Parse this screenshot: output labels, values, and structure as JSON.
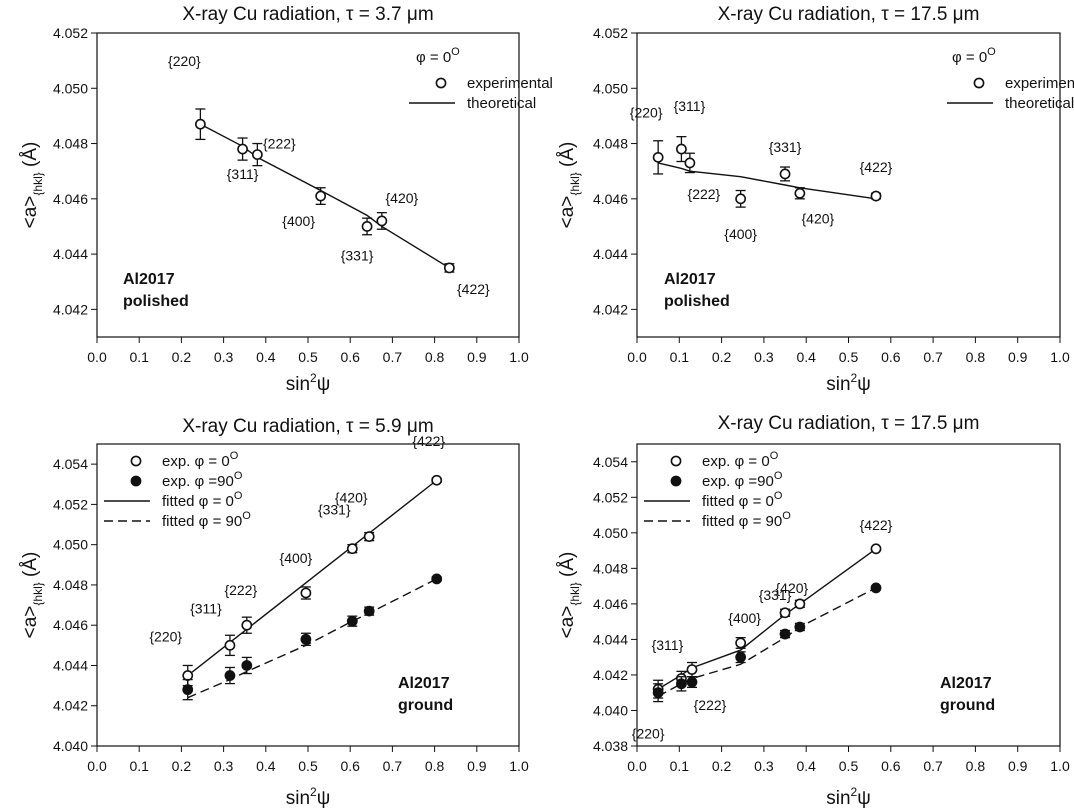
{
  "chart_data": [
    {
      "type": "scatter",
      "title": "X-ray Cu radiation, τ = 3.7 μm",
      "xlabel": "sin²ψ",
      "ylabel": "<a>{hkl} (Å)",
      "xlim": [
        0.0,
        1.0
      ],
      "ylim": [
        4.041,
        4.052
      ],
      "xticks": [
        "0.0",
        "0.1",
        "0.2",
        "0.3",
        "0.4",
        "0.5",
        "0.6",
        "0.7",
        "0.8",
        "0.9",
        "1.0"
      ],
      "yticks": [
        "4.042",
        "4.044",
        "4.046",
        "4.048",
        "4.050",
        "4.052"
      ],
      "phi_note": "φ = 0°",
      "sample_label": [
        "Al2017",
        "polished"
      ],
      "legend": [
        "experimental",
        "theoretical"
      ],
      "series": [
        {
          "name": "experimental",
          "style": "open",
          "x": [
            0.245,
            0.345,
            0.38,
            0.53,
            0.64,
            0.675,
            0.835
          ],
          "y": [
            4.0487,
            4.0478,
            4.0476,
            4.0461,
            4.045,
            4.0452,
            4.0435
          ],
          "err": [
            0.00055,
            0.0004,
            0.0004,
            0.0003,
            0.0003,
            0.0003,
            0.00015
          ],
          "labels": [
            "{220}",
            "{311}",
            "{222}",
            "{400}",
            "{331}",
            "{420}",
            "{422}"
          ]
        },
        {
          "name": "theoretical",
          "style": "solid",
          "x": [
            0.245,
            0.345,
            0.38,
            0.53,
            0.64,
            0.675,
            0.835
          ],
          "y": [
            4.0487,
            4.0479,
            4.0475,
            4.0463,
            4.0454,
            4.045,
            4.0435
          ]
        }
      ]
    },
    {
      "type": "scatter",
      "title": "X-ray Cu radiation, τ = 17.5 μm",
      "xlabel": "sin²ψ",
      "ylabel": "<a>{hkl} (Å)",
      "xlim": [
        0.0,
        1.0
      ],
      "ylim": [
        4.041,
        4.052
      ],
      "xticks": [
        "0.0",
        "0.1",
        "0.2",
        "0.3",
        "0.4",
        "0.5",
        "0.6",
        "0.7",
        "0.8",
        "0.9",
        "1.0"
      ],
      "yticks": [
        "4.042",
        "4.044",
        "4.046",
        "4.048",
        "4.050",
        "4.052"
      ],
      "phi_note": "φ = 0°",
      "sample_label": [
        "Al2017",
        "polished"
      ],
      "legend": [
        "experimental",
        "theoretical"
      ],
      "series": [
        {
          "name": "experimental",
          "style": "open",
          "x": [
            0.05,
            0.105,
            0.125,
            0.245,
            0.35,
            0.385,
            0.565
          ],
          "y": [
            4.0475,
            4.0478,
            4.0473,
            4.046,
            4.0469,
            4.0462,
            4.0461
          ],
          "err": [
            0.0006,
            0.00045,
            0.00035,
            0.0003,
            0.00025,
            0.0002,
            0.0001
          ],
          "labels": [
            "{220}",
            "{311}",
            "{222}",
            "{400}",
            "{331}",
            "{420}",
            "{422}"
          ]
        },
        {
          "name": "theoretical",
          "style": "solid",
          "x": [
            0.05,
            0.105,
            0.125,
            0.245,
            0.35,
            0.385,
            0.565
          ],
          "y": [
            4.0473,
            4.0471,
            4.047,
            4.0468,
            4.0465,
            4.0464,
            4.046
          ]
        }
      ]
    },
    {
      "type": "scatter",
      "title": "X-ray Cu radiation, τ = 5.9 μm",
      "xlabel": "sin²ψ",
      "ylabel": "<a>{hkl} (Å)",
      "xlim": [
        0.0,
        1.0
      ],
      "ylim": [
        4.04,
        4.055
      ],
      "xticks": [
        "0.0",
        "0.1",
        "0.2",
        "0.3",
        "0.4",
        "0.5",
        "0.6",
        "0.7",
        "0.8",
        "0.9",
        "1.0"
      ],
      "yticks": [
        "4.040",
        "4.042",
        "4.044",
        "4.046",
        "4.048",
        "4.050",
        "4.052",
        "4.054"
      ],
      "sample_label": [
        "Al2017",
        "ground"
      ],
      "legend": [
        "exp. φ = 0°",
        "exp. φ =90°",
        "fitted φ = 0°",
        "fitted φ = 90°"
      ],
      "series": [
        {
          "name": "exp. φ = 0°",
          "style": "open",
          "x": [
            0.215,
            0.315,
            0.355,
            0.495,
            0.605,
            0.645,
            0.805
          ],
          "y": [
            4.0435,
            4.045,
            4.046,
            4.0476,
            4.0498,
            4.0504,
            4.0532
          ],
          "err": [
            0.0005,
            0.0005,
            0.0004,
            0.0003,
            0.0002,
            0.0002,
            0.0001
          ],
          "labels": [
            "{220}",
            "{311}",
            "{222}",
            "{400}",
            "{331}",
            "{420}",
            "{422}"
          ]
        },
        {
          "name": "exp. φ =90°",
          "style": "filled",
          "x": [
            0.215,
            0.315,
            0.355,
            0.495,
            0.605,
            0.645,
            0.805
          ],
          "y": [
            4.0428,
            4.0435,
            4.044,
            4.0453,
            4.0462,
            4.0467,
            4.0483
          ],
          "err": [
            0.0005,
            0.0004,
            0.0004,
            0.0003,
            0.00025,
            0.0002,
            0.0001
          ]
        },
        {
          "name": "fitted φ = 0°",
          "style": "solid",
          "x": [
            0.215,
            0.805
          ],
          "y": [
            4.0435,
            4.0532
          ]
        },
        {
          "name": "fitted φ = 90°",
          "style": "dashed",
          "x": [
            0.215,
            0.315,
            0.355,
            0.495,
            0.605,
            0.645,
            0.805
          ],
          "y": [
            4.0424,
            4.0433,
            4.0437,
            4.045,
            4.0462,
            4.0466,
            4.0483
          ]
        }
      ]
    },
    {
      "type": "scatter",
      "title": "X-ray Cu radiation, τ = 17.5 μm",
      "xlabel": "sin²ψ",
      "ylabel": "<a>{hkl} (Å)",
      "xlim": [
        0.0,
        1.0
      ],
      "ylim": [
        4.038,
        4.055
      ],
      "xticks": [
        "0.0",
        "0.1",
        "0.2",
        "0.3",
        "0.4",
        "0.5",
        "0.6",
        "0.7",
        "0.8",
        "0.9",
        "1.0"
      ],
      "yticks": [
        "4.038",
        "4.040",
        "4.042",
        "4.044",
        "4.046",
        "4.048",
        "4.050",
        "4.052",
        "4.054"
      ],
      "sample_label": [
        "Al2017",
        "ground"
      ],
      "legend": [
        "exp. φ = 0°",
        "exp. φ =90°",
        "fitted φ = 0°",
        "fitted φ = 90°"
      ],
      "series": [
        {
          "name": "exp. φ = 0°",
          "style": "open",
          "x": [
            0.05,
            0.105,
            0.13,
            0.245,
            0.35,
            0.385,
            0.565
          ],
          "y": [
            4.0412,
            4.0418,
            4.0423,
            4.0438,
            4.0455,
            4.046,
            4.0491
          ],
          "err": [
            0.0005,
            0.0004,
            0.0004,
            0.0003,
            0.0002,
            0.0002,
            0.0001
          ]
        },
        {
          "name": "exp. φ =90°",
          "style": "filled",
          "x": [
            0.05,
            0.105,
            0.13,
            0.245,
            0.35,
            0.385,
            0.565
          ],
          "y": [
            4.041,
            4.0415,
            4.0416,
            4.043,
            4.0443,
            4.0447,
            4.0469
          ],
          "err": [
            0.0005,
            0.0004,
            0.0003,
            0.0003,
            0.0002,
            0.0002,
            0.0001
          ],
          "labels": [
            "{220}",
            "{311}",
            "{222}",
            "{400}",
            "{331}",
            "{420}",
            "{422}"
          ]
        },
        {
          "name": "fitted φ = 0°",
          "style": "solid",
          "x": [
            0.05,
            0.105,
            0.13,
            0.245,
            0.35,
            0.385,
            0.565
          ],
          "y": [
            4.0412,
            4.042,
            4.0424,
            4.0434,
            4.0454,
            4.046,
            4.0491
          ]
        },
        {
          "name": "fitted φ = 90°",
          "style": "dashed",
          "x": [
            0.05,
            0.105,
            0.13,
            0.245,
            0.35,
            0.385,
            0.565
          ],
          "y": [
            4.0408,
            4.0415,
            4.0418,
            4.0426,
            4.0441,
            4.0447,
            4.0469
          ]
        }
      ]
    }
  ]
}
